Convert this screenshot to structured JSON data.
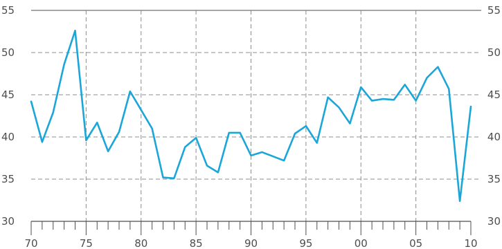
{
  "chart_data": {
    "type": "line",
    "ylim": [
      30,
      55
    ],
    "y_ticks": [
      30,
      35,
      40,
      45,
      50,
      55
    ],
    "y_tick_labels": [
      "30",
      "35",
      "40",
      "45",
      "50",
      "55"
    ],
    "xlim": [
      1970,
      2010
    ],
    "x_ticks": [
      1970,
      1975,
      1980,
      1985,
      1990,
      1995,
      2000,
      2005,
      2010
    ],
    "x_tick_labels": [
      "70",
      "75",
      "80",
      "85",
      "90",
      "95",
      "00",
      "05",
      "10"
    ],
    "grid": true,
    "y_axis_both_sides": true,
    "series_color": "#1aa6d8",
    "series": [
      {
        "x": [
          1970,
          1971,
          1972,
          1973,
          1974,
          1975,
          1976,
          1977,
          1978,
          1979,
          1980,
          1981,
          1982,
          1983,
          1984,
          1985,
          1986,
          1987,
          1988,
          1989,
          1990,
          1991,
          1992,
          1993,
          1994,
          1995,
          1996,
          1997,
          1998,
          1999,
          2000,
          2001,
          2002,
          2003,
          2004,
          2005,
          2006,
          2007,
          2008,
          2009,
          2010
        ],
        "values": [
          44.2,
          39.4,
          42.9,
          48.6,
          52.6,
          39.6,
          41.7,
          38.3,
          40.6,
          45.4,
          43.2,
          41.0,
          35.2,
          35.1,
          38.8,
          39.9,
          36.6,
          35.8,
          40.5,
          40.5,
          37.8,
          38.2,
          37.7,
          37.2,
          40.4,
          41.3,
          39.3,
          44.7,
          43.5,
          41.6,
          45.9,
          44.3,
          44.5,
          44.4,
          46.2,
          44.3,
          47.0,
          48.3,
          45.7,
          32.4,
          43.6
        ]
      }
    ]
  }
}
